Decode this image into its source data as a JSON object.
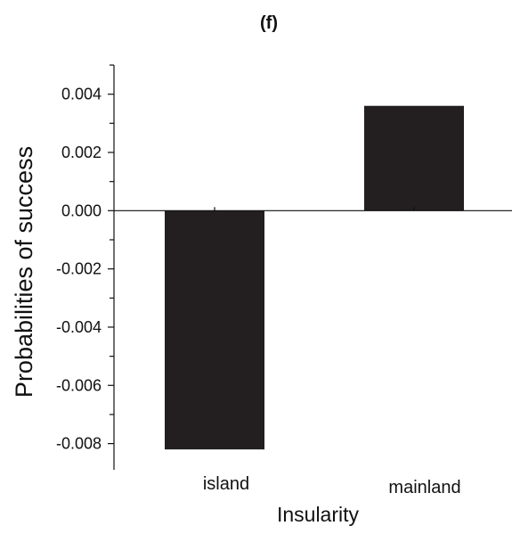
{
  "chart_data": {
    "type": "bar",
    "title": "(f)",
    "xlabel": "Insularity",
    "ylabel": "Probabilities of success",
    "categories": [
      "island",
      "mainland"
    ],
    "values": [
      -0.0082,
      0.0036
    ],
    "ylim": [
      -0.0089,
      0.005
    ],
    "yticks": [
      0.004,
      0.002,
      0.0,
      -0.002,
      -0.004,
      -0.006,
      -0.008
    ],
    "ytick_labels": [
      "0.004",
      "0.002",
      "0.000",
      "-0.002",
      "-0.004",
      "-0.006",
      "-0.008"
    ],
    "bar_color": "#231f20",
    "grid": false,
    "legend": false
  }
}
